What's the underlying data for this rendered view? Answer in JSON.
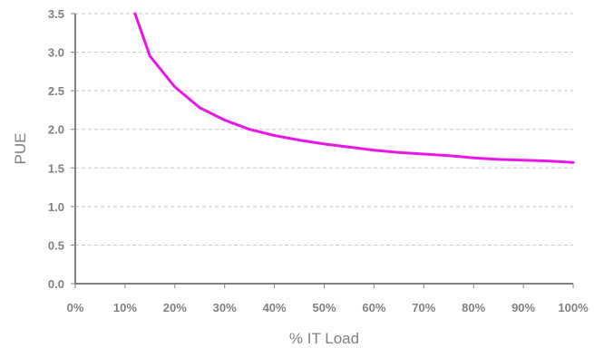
{
  "chart_data": {
    "type": "line",
    "title": "",
    "xlabel": "% IT Load",
    "ylabel": "PUE",
    "xlim": [
      0,
      100
    ],
    "ylim": [
      0,
      3.5
    ],
    "x_tick_labels": [
      "0%",
      "10%",
      "20%",
      "30%",
      "40%",
      "50%",
      "60%",
      "70%",
      "80%",
      "90%",
      "100%"
    ],
    "y_tick_labels": [
      "0.0",
      "0.5",
      "1.0",
      "1.5",
      "2.0",
      "2.5",
      "3.0",
      "3.5"
    ],
    "grid": "horizontal dashed",
    "legend": "none",
    "series": [
      {
        "color": "#e817e8",
        "x": [
          12,
          15,
          20,
          25,
          30,
          35,
          40,
          45,
          50,
          55,
          60,
          65,
          70,
          75,
          80,
          85,
          90,
          95,
          100
        ],
        "y": [
          3.5,
          2.95,
          2.55,
          2.28,
          2.12,
          2.0,
          1.92,
          1.86,
          1.81,
          1.77,
          1.73,
          1.7,
          1.68,
          1.66,
          1.63,
          1.61,
          1.6,
          1.59,
          1.57
        ]
      }
    ]
  }
}
